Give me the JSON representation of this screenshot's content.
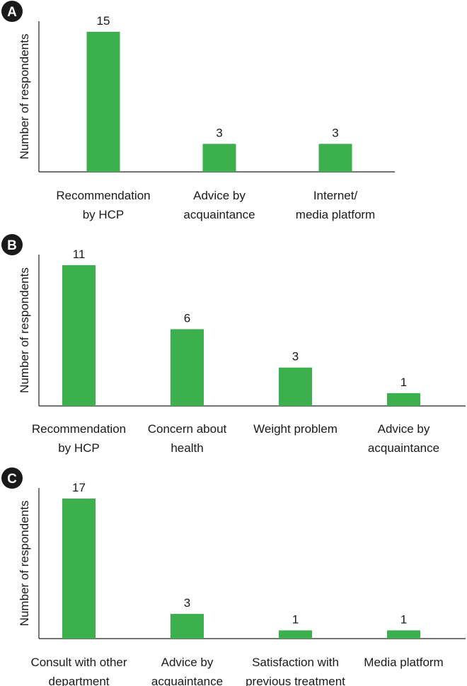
{
  "colors": {
    "bar": "#3cb04c",
    "badge": "#1a1a1a",
    "axis": "#222222"
  },
  "chart_data": [
    {
      "panel": "A",
      "type": "bar",
      "ylabel": "Number of respondents",
      "categories": [
        [
          "Recommendation",
          "by HCP"
        ],
        [
          "Advice by",
          "acquaintance"
        ],
        [
          "Internet/",
          "media platform"
        ]
      ],
      "values": [
        15,
        3,
        3
      ],
      "data_labels": [
        "15",
        "3",
        "3"
      ],
      "ylim": [
        0,
        15
      ]
    },
    {
      "panel": "B",
      "type": "bar",
      "ylabel": "Number of respondents",
      "categories": [
        [
          "Recommendation",
          "by HCP"
        ],
        [
          "Concern about",
          "health"
        ],
        [
          "Weight problem"
        ],
        [
          "Advice by",
          "acquaintance"
        ]
      ],
      "values": [
        11,
        6,
        3,
        1
      ],
      "data_labels": [
        "11",
        "6",
        "3",
        "1"
      ],
      "ylim": [
        0,
        11
      ]
    },
    {
      "panel": "C",
      "type": "bar",
      "ylabel": "Number of respondents",
      "categories": [
        [
          "Consult with other",
          "department"
        ],
        [
          "Advice by",
          "acquaintance"
        ],
        [
          "Satisfaction with",
          "previous treatment"
        ],
        [
          "Media platform"
        ]
      ],
      "values": [
        17,
        3,
        1,
        1
      ],
      "data_labels": [
        "17",
        "3",
        "1",
        "1"
      ],
      "ylim": [
        0,
        17
      ]
    }
  ]
}
